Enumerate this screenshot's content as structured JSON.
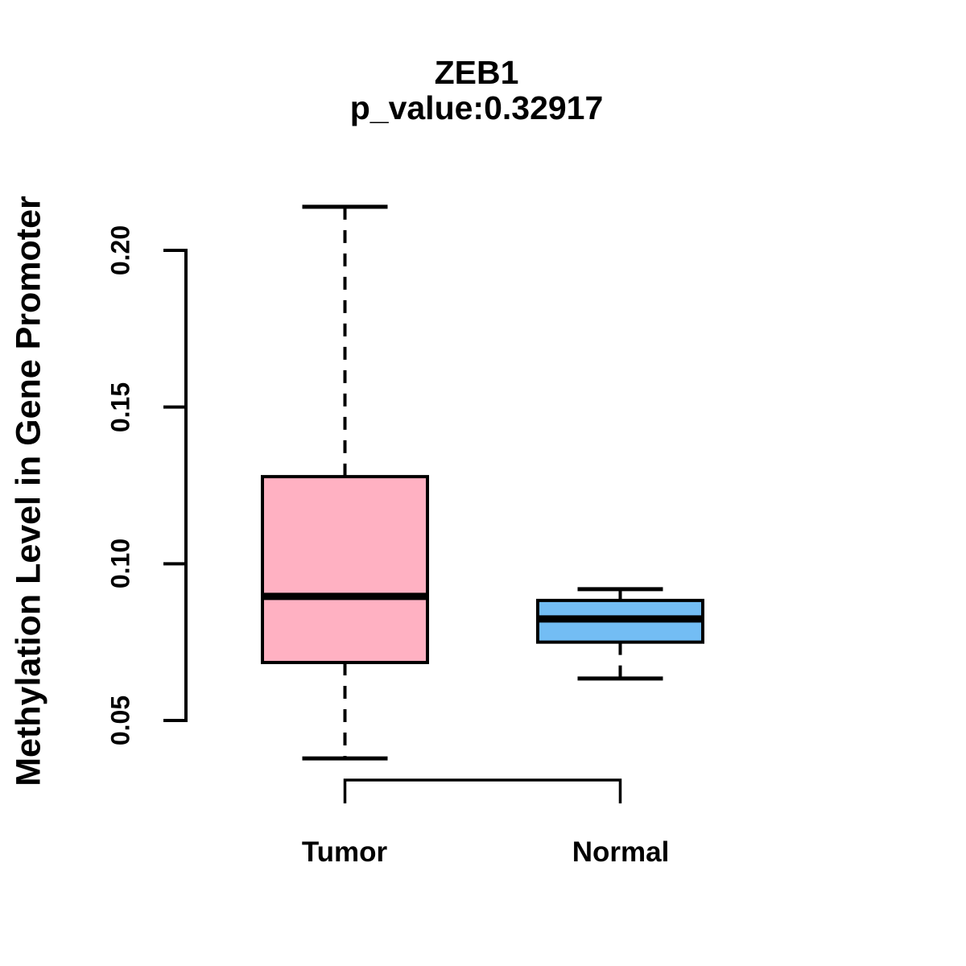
{
  "title": {
    "line1": "ZEB1",
    "line2": "p_value:0.32917"
  },
  "y_axis": {
    "label": "Methylation Level in Gene Promoter",
    "tick_labels": [
      "0.05",
      "0.10",
      "0.15",
      "0.20"
    ]
  },
  "x_axis": {
    "categories": [
      "Tumor",
      "Normal"
    ]
  },
  "colors": {
    "tumor_fill": "#FFB1C2",
    "normal_fill": "#73BDF4",
    "line": "#000000",
    "background": "#FFFFFF"
  },
  "chart_data": {
    "type": "boxplot",
    "title": "ZEB1",
    "subtitle": "p_value:0.32917",
    "gene": "ZEB1",
    "p_value": 0.32917,
    "ylabel": "Methylation Level in Gene Promoter",
    "xlabel": "",
    "categories": [
      "Tumor",
      "Normal"
    ],
    "yticks": [
      0.05,
      0.1,
      0.15,
      0.2
    ],
    "ylim": [
      0.03,
      0.22
    ],
    "grid": false,
    "legend": false,
    "series": [
      {
        "name": "Tumor",
        "fill_color": "#FFB1C2",
        "stats": {
          "whisker_low": 0.0379,
          "q1": 0.0685,
          "median": 0.0896,
          "q3": 0.1278,
          "whisker_high": 0.2139
        }
      },
      {
        "name": "Normal",
        "fill_color": "#73BDF4",
        "stats": {
          "whisker_low": 0.0634,
          "q1": 0.075,
          "median": 0.0824,
          "q3": 0.0883,
          "whisker_high": 0.0919
        }
      }
    ],
    "comparison_bracket": {
      "from": "Tumor",
      "to": "Normal"
    }
  }
}
